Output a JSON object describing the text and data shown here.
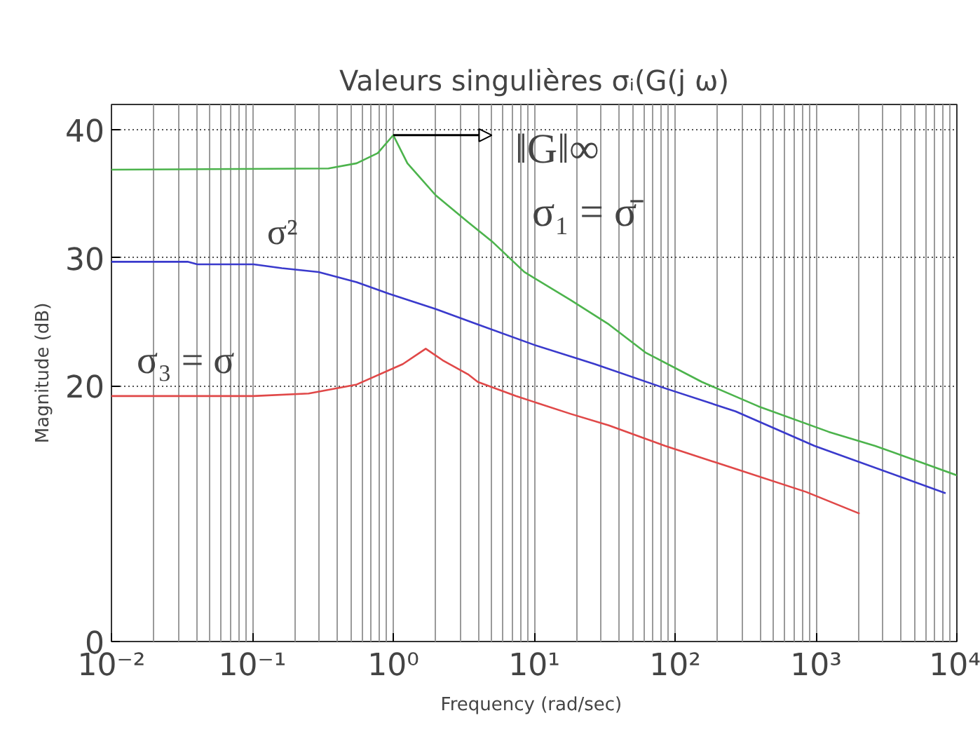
{
  "chart_data": {
    "type": "line",
    "title": "Valeurs singulières σᵢ(G(j ω)",
    "xlabel": "Frequency  (rad/sec)",
    "ylabel": "Magnitude (dB)",
    "log": "x",
    "grid": true,
    "marker": "none",
    "line_style": "solid",
    "xlim": [
      0.01,
      10000
    ],
    "ylim": [
      0,
      42
    ],
    "xticks": [
      {
        "value": 0.01,
        "label": "10⁻²"
      },
      {
        "value": 0.1,
        "label": "10⁻¹"
      },
      {
        "value": 1,
        "label": "10⁰"
      },
      {
        "value": 10,
        "label": "10¹"
      },
      {
        "value": 100,
        "label": "10²"
      },
      {
        "value": 1000,
        "label": "10³"
      },
      {
        "value": 10000,
        "label": "10⁴"
      }
    ],
    "yticks": [
      0,
      20,
      30,
      40
    ],
    "series": [
      {
        "color": "#4cb34c",
        "x": [
          0.01,
          0.347,
          0.55,
          0.776,
          1,
          1.26,
          2.0,
          3.39,
          5.01,
          8.51,
          18.2,
          33.9,
          61.7,
          155,
          389,
          1230,
          2630,
          10000
        ],
        "values": [
          36.9,
          37.0,
          37.4,
          38.2,
          39.6,
          37.4,
          34.9,
          32.8,
          31.3,
          28.9,
          26.7,
          24.8,
          22.6,
          20.3,
          18.4,
          16.4,
          15.3,
          13.0
        ]
      },
      {
        "color": "#3a3acc",
        "x": [
          0.01,
          0.0347,
          0.0407,
          0.102,
          0.162,
          0.295,
          0.55,
          0.933,
          2.0,
          3.98,
          10,
          26.9,
          85.1,
          269,
          977,
          8318
        ],
        "values": [
          29.7,
          29.7,
          29.5,
          29.5,
          29.2,
          28.9,
          28.1,
          27.2,
          26.0,
          24.8,
          23.2,
          21.7,
          19.8,
          18.0,
          15.3,
          11.6
        ]
      },
      {
        "color": "#e04848",
        "x": [
          0.01,
          0.102,
          0.251,
          0.55,
          1.17,
          1.7,
          2.24,
          3.39,
          3.98,
          7.41,
          18.2,
          33.9,
          85.1,
          269,
          851,
          2042
        ],
        "values": [
          19.2,
          19.2,
          19.4,
          20.1,
          21.7,
          22.9,
          22.0,
          20.9,
          20.3,
          19.2,
          17.8,
          16.9,
          15.3,
          13.5,
          11.7,
          10.0
        ]
      }
    ],
    "annotations": [
      "‖G‖∞",
      "σ₁ = σ̄",
      "σ²",
      "σ₃ = σ"
    ]
  }
}
